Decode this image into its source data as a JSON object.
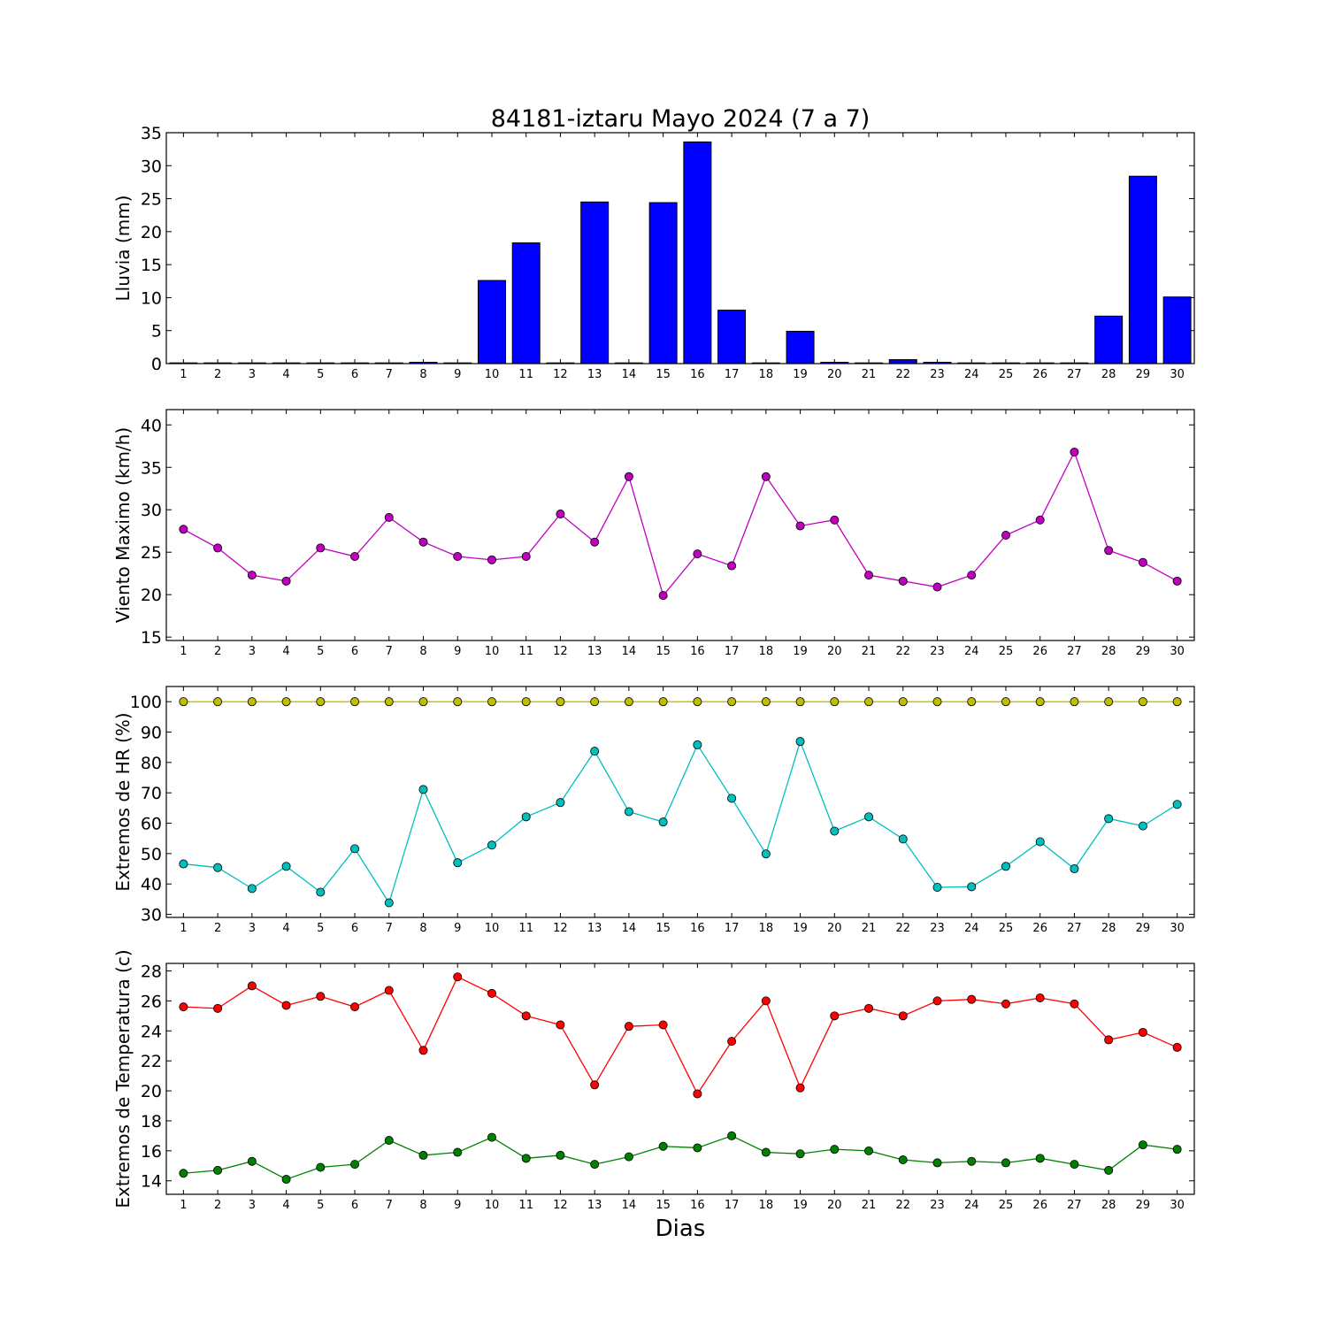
{
  "figure": {
    "title": "84181-iztaru Mayo 2024  (7 a 7)",
    "xlabel": "Dias"
  },
  "chart_data": [
    {
      "type": "bar",
      "ylabel": "Lluvia (mm)",
      "ylim": [
        0,
        35
      ],
      "yticks": [
        0,
        5,
        10,
        15,
        20,
        25,
        30,
        35
      ],
      "x": [
        1,
        2,
        3,
        4,
        5,
        6,
        7,
        8,
        9,
        10,
        11,
        12,
        13,
        14,
        15,
        16,
        17,
        18,
        19,
        20,
        21,
        22,
        23,
        24,
        25,
        26,
        27,
        28,
        29,
        30
      ],
      "series": [
        {
          "color": "#0000ff",
          "values": [
            0,
            0,
            0,
            0,
            0,
            0,
            0,
            0.2,
            0,
            12.6,
            18.3,
            0,
            24.5,
            0,
            24.4,
            33.6,
            8.1,
            0,
            4.9,
            0.2,
            0,
            0.6,
            0.2,
            0,
            0,
            0,
            0,
            7.2,
            28.4,
            10.1
          ]
        }
      ]
    },
    {
      "type": "line",
      "ylabel": "Viento Maximo (km/h)",
      "ylim": [
        14.6,
        41.8
      ],
      "yticks": [
        15,
        20,
        25,
        30,
        35,
        40
      ],
      "x": [
        1,
        2,
        3,
        4,
        5,
        6,
        7,
        8,
        9,
        10,
        11,
        12,
        13,
        14,
        15,
        16,
        17,
        18,
        19,
        20,
        21,
        22,
        23,
        24,
        25,
        26,
        27,
        28,
        29,
        30
      ],
      "series": [
        {
          "color": "#bf00bf",
          "values": [
            27.7,
            25.5,
            22.3,
            21.6,
            25.5,
            24.5,
            29.1,
            26.2,
            24.5,
            24.1,
            24.5,
            29.5,
            26.2,
            33.9,
            19.9,
            24.8,
            23.4,
            33.9,
            28.1,
            28.8,
            22.3,
            21.6,
            20.9,
            22.3,
            27.0,
            28.8,
            36.8,
            25.2,
            23.8,
            21.6
          ]
        }
      ]
    },
    {
      "type": "line",
      "ylabel": "Extremos de HR (%)",
      "ylim": [
        29,
        105
      ],
      "yticks": [
        30,
        40,
        50,
        60,
        70,
        80,
        90,
        100
      ],
      "x": [
        1,
        2,
        3,
        4,
        5,
        6,
        7,
        8,
        9,
        10,
        11,
        12,
        13,
        14,
        15,
        16,
        17,
        18,
        19,
        20,
        21,
        22,
        23,
        24,
        25,
        26,
        27,
        28,
        29,
        30
      ],
      "series": [
        {
          "color": "#bfbf00",
          "values": [
            100,
            100,
            100,
            100,
            100,
            100,
            100,
            100,
            100,
            100,
            100,
            100,
            100,
            100,
            100,
            100,
            100,
            100,
            100,
            100,
            100,
            100,
            100,
            100,
            100,
            100,
            100,
            100,
            100,
            100
          ]
        },
        {
          "color": "#00bfbf",
          "values": [
            46.6,
            45.4,
            38.5,
            45.8,
            37.3,
            51.6,
            33.8,
            71.1,
            47.0,
            52.8,
            62.1,
            66.8,
            83.7,
            63.8,
            60.4,
            85.8,
            68.2,
            49.9,
            86.9,
            57.4,
            62.1,
            54.8,
            38.9,
            39.1,
            45.8,
            53.9,
            45.0,
            61.5,
            59.1,
            66.2
          ]
        }
      ]
    },
    {
      "type": "line",
      "ylabel": "Extremos de Temperatura (c)",
      "ylim": [
        13.1,
        28.5
      ],
      "yticks": [
        14,
        16,
        18,
        20,
        22,
        24,
        26,
        28
      ],
      "x": [
        1,
        2,
        3,
        4,
        5,
        6,
        7,
        8,
        9,
        10,
        11,
        12,
        13,
        14,
        15,
        16,
        17,
        18,
        19,
        20,
        21,
        22,
        23,
        24,
        25,
        26,
        27,
        28,
        29,
        30
      ],
      "series": [
        {
          "color": "#ff0000",
          "values": [
            25.6,
            25.5,
            27.0,
            25.7,
            26.3,
            25.6,
            26.7,
            22.7,
            27.6,
            26.5,
            25.0,
            24.4,
            20.4,
            24.3,
            24.4,
            19.8,
            23.3,
            26.0,
            20.2,
            25.0,
            25.5,
            25.0,
            26.0,
            26.1,
            25.8,
            26.2,
            25.8,
            23.4,
            23.9,
            22.9
          ]
        },
        {
          "color": "#008000",
          "values": [
            14.5,
            14.7,
            15.3,
            14.1,
            14.9,
            15.1,
            16.7,
            15.7,
            15.9,
            16.9,
            15.5,
            15.7,
            15.1,
            15.6,
            16.3,
            16.2,
            17.0,
            15.9,
            15.8,
            16.1,
            16.0,
            15.4,
            15.2,
            15.3,
            15.2,
            15.5,
            15.1,
            14.7,
            16.4,
            16.1
          ]
        }
      ]
    }
  ]
}
